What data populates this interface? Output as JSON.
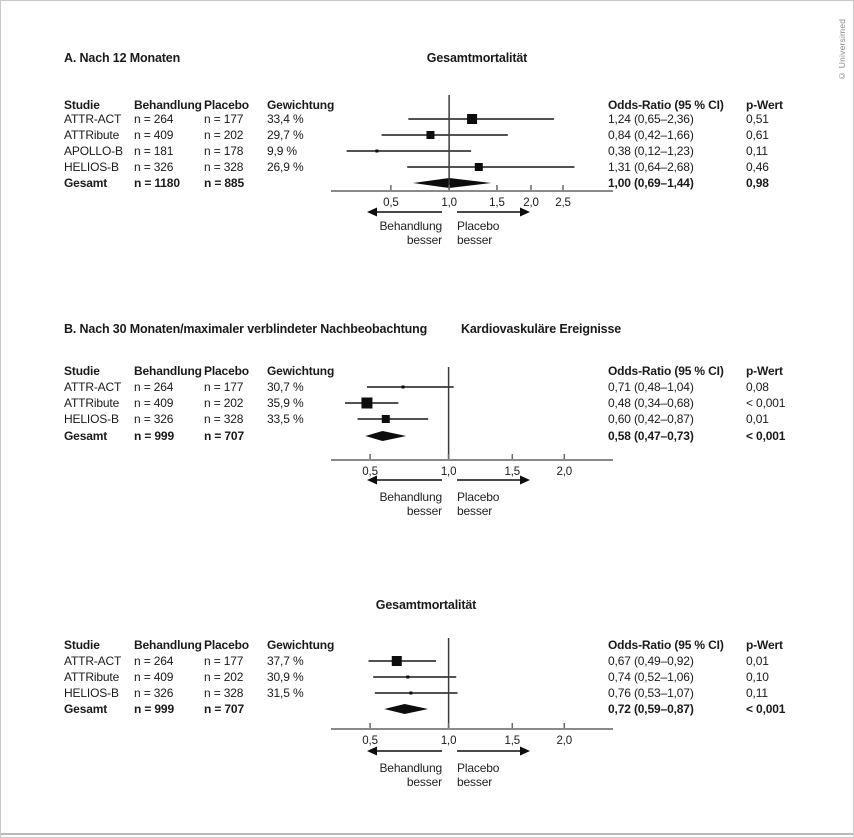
{
  "copyright": "© Universimed",
  "chart_data": [
    {
      "type": "forest",
      "panel_label": "A. Nach 12 Monaten",
      "outcome_title": "Gesamtmortalität",
      "table_headers": {
        "studie": "Studie",
        "behandlung": "Behandlung",
        "placebo": "Placebo",
        "gewichtung": "Gewichtung",
        "or": "Odds-Ratio (95 % CI)",
        "p": "p-Wert"
      },
      "rows": [
        {
          "studie": "ATTR-ACT",
          "behandlung": "n = 264",
          "placebo": "n = 177",
          "gewichtung": "33,4 %",
          "or": 1.24,
          "ci_low": 0.65,
          "ci_high": 2.36,
          "or_text": "1,24 (0,65–2,36)",
          "p": "0,51",
          "marker_size": 10
        },
        {
          "studie": "ATTRibute",
          "behandlung": "n = 409",
          "placebo": "n = 202",
          "gewichtung": "29,7 %",
          "or": 0.84,
          "ci_low": 0.42,
          "ci_high": 1.66,
          "or_text": "0,84 (0,42–1,66)",
          "p": "0,61",
          "marker_size": 8
        },
        {
          "studie": "APOLLO-B",
          "behandlung": "n = 181",
          "placebo": "n = 178",
          "gewichtung": "9,9 %",
          "or": 0.38,
          "ci_low": 0.12,
          "ci_high": 1.23,
          "or_text": "0,38 (0,12–1,23)",
          "p": "0,11",
          "marker_size": 3
        },
        {
          "studie": "HELIOS-B",
          "behandlung": "n = 326",
          "placebo": "n = 328",
          "gewichtung": "26,9 %",
          "or": 1.31,
          "ci_low": 0.64,
          "ci_high": 2.68,
          "or_text": "1,31 (0,64–2,68)",
          "p": "0,46",
          "marker_size": 8
        }
      ],
      "total": {
        "studie": "Gesamt",
        "behandlung": "n = 1180",
        "placebo": "n = 885",
        "or": 1.0,
        "ci_low": 0.69,
        "ci_high": 1.44,
        "or_text": "1,00 (0,69–1,44)",
        "p": "0,98"
      },
      "axis": {
        "ticks": [
          0.5,
          1.0,
          1.5,
          2.0,
          2.5
        ],
        "tick_labels": [
          "0,5",
          "1,0",
          "1,5",
          "2,0",
          "2,5"
        ],
        "ref_line": 1.0
      },
      "direction_labels": {
        "left_line1": "Behandlung",
        "left_line2": "besser",
        "right_line1": "Placebo",
        "right_line2": "besser"
      }
    },
    {
      "type": "forest",
      "panel_label": "B. Nach 30 Monaten/maximaler verblindeter Nachbeobachtung",
      "outcome_title": "Kardiovaskuläre Ereignisse",
      "table_headers": {
        "studie": "Studie",
        "behandlung": "Behandlung",
        "placebo": "Placebo",
        "gewichtung": "Gewichtung",
        "or": "Odds-Ratio (95 % CI)",
        "p": "p-Wert"
      },
      "rows": [
        {
          "studie": "ATTR-ACT",
          "behandlung": "n = 264",
          "placebo": "n = 177",
          "gewichtung": "30,7 %",
          "or": 0.71,
          "ci_low": 0.48,
          "ci_high": 1.04,
          "or_text": "0,71 (0,48–1,04)",
          "p": "0,08",
          "marker_size": 3
        },
        {
          "studie": "ATTRibute",
          "behandlung": "n = 409",
          "placebo": "n = 202",
          "gewichtung": "35,9 %",
          "or": 0.48,
          "ci_low": 0.34,
          "ci_high": 0.68,
          "or_text": "0,48 (0,34–0,68)",
          "p": "< 0,001",
          "marker_size": 11
        },
        {
          "studie": "HELIOS-B",
          "behandlung": "n = 326",
          "placebo": "n = 328",
          "gewichtung": "33,5 %",
          "or": 0.6,
          "ci_low": 0.42,
          "ci_high": 0.87,
          "or_text": "0,60 (0,42–0,87)",
          "p": "0,01",
          "marker_size": 8
        }
      ],
      "total": {
        "studie": "Gesamt",
        "behandlung": "n = 999",
        "placebo": "n = 707",
        "or": 0.58,
        "ci_low": 0.47,
        "ci_high": 0.73,
        "or_text": "0,58 (0,47–0,73)",
        "p": "< 0,001"
      },
      "axis": {
        "ticks": [
          0.5,
          1.0,
          1.5,
          2.0
        ],
        "tick_labels": [
          "0,5",
          "1,0",
          "1,5",
          "2,0"
        ],
        "ref_line": 1.0
      },
      "direction_labels": {
        "left_line1": "Behandlung",
        "left_line2": "besser",
        "right_line1": "Placebo",
        "right_line2": "besser"
      }
    },
    {
      "type": "forest",
      "panel_label": "",
      "outcome_title": "Gesamtmortalität",
      "table_headers": {
        "studie": "Studie",
        "behandlung": "Behandlung",
        "placebo": "Placebo",
        "gewichtung": "Gewichtung",
        "or": "Odds-Ratio (95 % CI)",
        "p": "p-Wert"
      },
      "rows": [
        {
          "studie": "ATTR-ACT",
          "behandlung": "n = 264",
          "placebo": "n = 177",
          "gewichtung": "37,7 %",
          "or": 0.67,
          "ci_low": 0.49,
          "ci_high": 0.92,
          "or_text": "0,67 (0,49–0,92)",
          "p": "0,01",
          "marker_size": 10
        },
        {
          "studie": "ATTRibute",
          "behandlung": "n = 409",
          "placebo": "n = 202",
          "gewichtung": "30,9 %",
          "or": 0.74,
          "ci_low": 0.52,
          "ci_high": 1.06,
          "or_text": "0,74 (0,52–1,06)",
          "p": "0,10",
          "marker_size": 3
        },
        {
          "studie": "HELIOS-B",
          "behandlung": "n = 326",
          "placebo": "n = 328",
          "gewichtung": "31,5 %",
          "or": 0.76,
          "ci_low": 0.53,
          "ci_high": 1.07,
          "or_text": "0,76 (0,53–1,07)",
          "p": "0,11",
          "marker_size": 3
        }
      ],
      "total": {
        "studie": "Gesamt",
        "behandlung": "n = 999",
        "placebo": "n = 707",
        "or": 0.72,
        "ci_low": 0.59,
        "ci_high": 0.87,
        "or_text": "0,72 (0,59–0,87)",
        "p": "< 0,001"
      },
      "axis": {
        "ticks": [
          0.5,
          1.0,
          1.5,
          2.0
        ],
        "tick_labels": [
          "0,5",
          "1,0",
          "1,5",
          "2,0"
        ],
        "ref_line": 1.0
      },
      "direction_labels": {
        "left_line1": "Behandlung",
        "left_line2": "besser",
        "right_line1": "Placebo",
        "right_line2": "besser"
      }
    }
  ],
  "colors": {
    "text": "#1a1a1a",
    "marker": "#0d0d0d",
    "ci_line": "#3a3a3a",
    "axis": "#8a8a8a",
    "copyright": "#8a8a8a"
  }
}
